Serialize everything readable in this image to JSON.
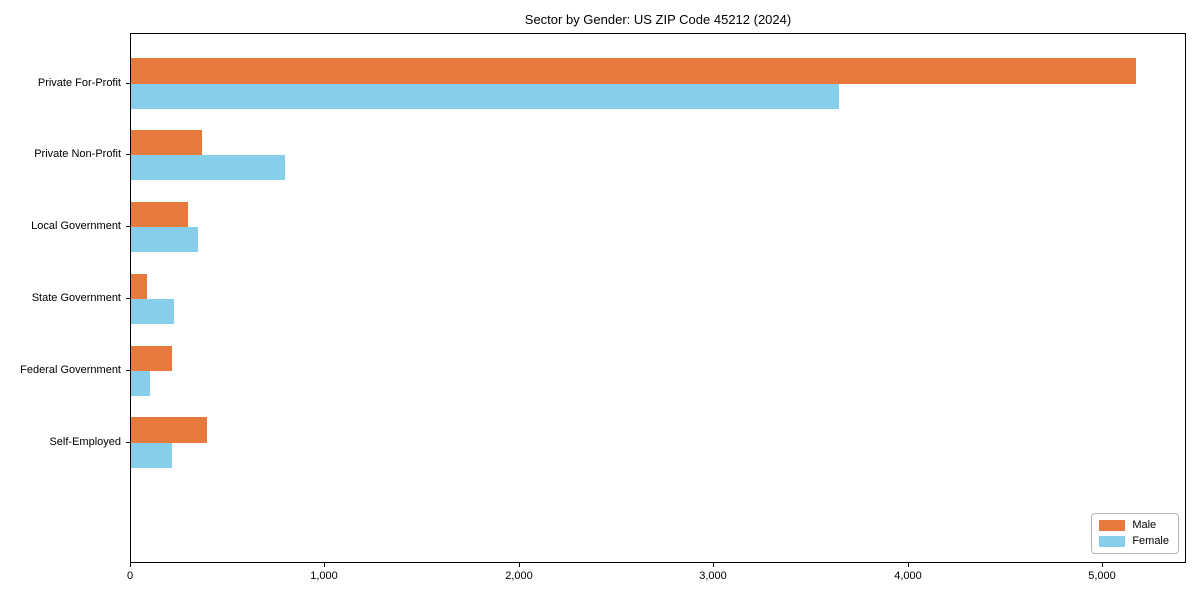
{
  "title": "Sector by Gender: US ZIP Code 45212 (2024)",
  "chart_data": {
    "type": "bar",
    "orientation": "horizontal",
    "title": "Sector by Gender: US ZIP Code 45212 (2024)",
    "categories": [
      "Private For-Profit",
      "Private Non-Profit",
      "Local Government",
      "State Government",
      "Federal Government",
      "Self-Employed"
    ],
    "series": [
      {
        "name": "Male",
        "color": "#E8793D",
        "values": [
          5170,
          365,
          295,
          80,
          210,
          390
        ]
      },
      {
        "name": "Female",
        "color": "#87CEEB",
        "values": [
          3640,
          790,
          345,
          220,
          100,
          210
        ]
      }
    ],
    "xlabel": "",
    "ylabel": "",
    "xlim": [
      0,
      5430
    ],
    "xticks": [
      0,
      1000,
      2000,
      3000,
      4000,
      5000
    ],
    "xtick_labels": [
      "0",
      "1,000",
      "2,000",
      "3,000",
      "4,000",
      "5,000"
    ],
    "legend_position": "lower right",
    "grid": false,
    "frame": true
  }
}
